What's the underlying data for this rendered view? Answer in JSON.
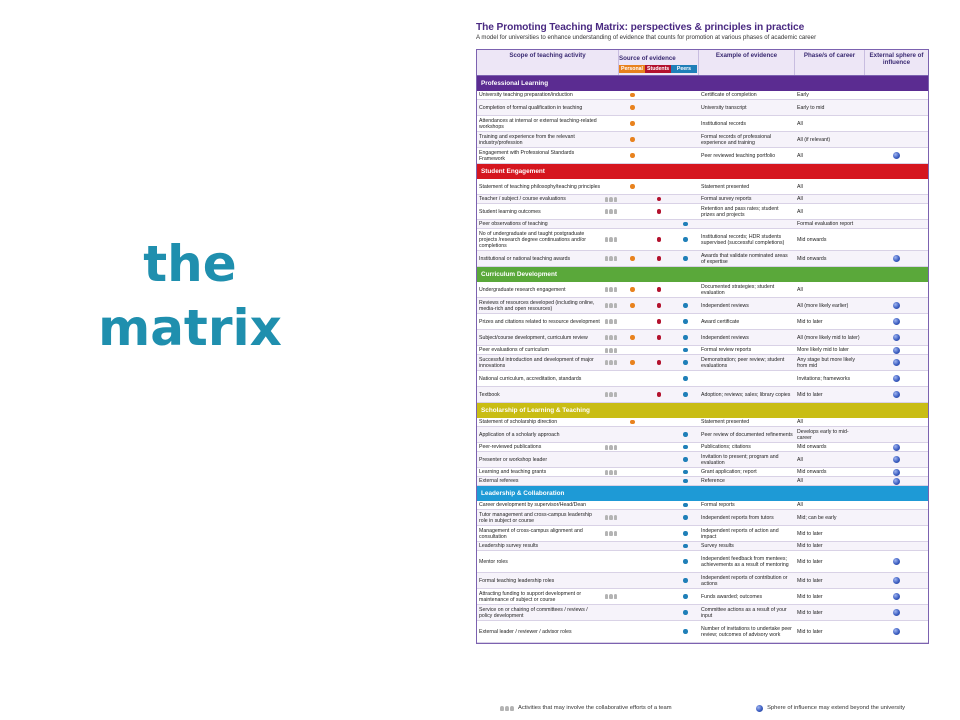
{
  "slide": {
    "title_line1": "the",
    "title_line2": "matrix"
  },
  "document": {
    "title": "The Promoting Teaching Matrix: perspectives & principles in practice",
    "subtitle": "A model for universities to enhance understanding of evidence that counts for promotion at various phases of academic career"
  },
  "colors": {
    "personal": "#e8821e",
    "students": "#b3122e",
    "peers": "#1f7fb8",
    "team_icon": "#b4b4b4"
  },
  "columns": {
    "scope": "Scope of teaching activity",
    "source": "Source of evidence",
    "source_keys": [
      "Personal",
      "Students",
      "Peers"
    ],
    "example": "Example of evidence",
    "phase": "Phase/s of career",
    "external": "External sphere of influence"
  },
  "sections": [
    {
      "name": "Professional Learning",
      "color": "#5b2c91",
      "rows": [
        {
          "scope": "University teaching preparation/induction",
          "team": false,
          "src": [
            "p"
          ],
          "example": "Certificate of completion",
          "phase": "Early",
          "ext": false
        },
        {
          "scope": "Completion of formal qualification in teaching",
          "team": false,
          "src": [
            "p"
          ],
          "example": "University transcript",
          "phase": "Early to mid",
          "ext": false
        },
        {
          "scope": "Attendances at internal or external teaching-related workshops",
          "team": false,
          "src": [
            "p"
          ],
          "example": "Institutional records",
          "phase": "All",
          "ext": false
        },
        {
          "scope": "Training and experience from the relevant industry/profession",
          "team": false,
          "src": [
            "p"
          ],
          "example": "Formal records of professional experience and training",
          "phase": "All (if relevant)",
          "ext": false
        },
        {
          "scope": "Engagement with Professional Standards Framework",
          "team": false,
          "src": [
            "p"
          ],
          "example": "Peer reviewed teaching portfolio",
          "phase": "All",
          "ext": true
        }
      ]
    },
    {
      "name": "Student Engagement",
      "color": "#d5161f",
      "rows": [
        {
          "scope": "Statement of teaching philosophy/teaching principles",
          "team": false,
          "src": [
            "p"
          ],
          "example": "Statement presented",
          "phase": "All",
          "ext": false
        },
        {
          "scope": "Teacher / subject / course evaluations",
          "team": true,
          "src": [
            "s"
          ],
          "example": "Formal survey reports",
          "phase": "All",
          "ext": false
        },
        {
          "scope": "Student learning outcomes",
          "team": true,
          "src": [
            "s"
          ],
          "example": "Retention and pass rates; student prizes and projects",
          "phase": "All",
          "ext": false
        },
        {
          "scope": "Peer observations of teaching",
          "team": false,
          "src": [
            "r"
          ],
          "example": "",
          "phase": "Formal evaluation report",
          "ext": false
        },
        {
          "scope": "No of undergraduate and taught postgraduate projects /research degree continuations and/or completions",
          "team": true,
          "src": [
            "s",
            "r"
          ],
          "example": "Institutional records; HDR students supervised (successful completions)",
          "phase": "Mid onwards",
          "ext": false
        },
        {
          "scope": "Institutional or national teaching awards",
          "team": true,
          "src": [
            "p",
            "s",
            "r"
          ],
          "example": "Awards that validate nominated areas of expertise",
          "phase": "Mid onwards",
          "ext": true
        }
      ]
    },
    {
      "name": "Curriculum Development",
      "color": "#5aa83a",
      "rows": [
        {
          "scope": "Undergraduate research engagement",
          "team": true,
          "src": [
            "p",
            "s"
          ],
          "example": "Documented strategies; student evaluation",
          "phase": "All",
          "ext": false
        },
        {
          "scope": "Reviews of resources developed (including online, media-rich and open resources)",
          "team": true,
          "src": [
            "p",
            "s",
            "r"
          ],
          "example": "Independent reviews",
          "phase": "All (more likely earlier)",
          "ext": true
        },
        {
          "scope": "Prizes and citations related to resource development",
          "team": true,
          "src": [
            "s",
            "r"
          ],
          "example": "Award certificate",
          "phase": "Mid to later",
          "ext": true
        },
        {
          "scope": "Subject/course development, curriculum review",
          "team": true,
          "src": [
            "p",
            "s",
            "r"
          ],
          "example": "Independent reviews",
          "phase": "All (more likely mid to later)",
          "ext": true
        },
        {
          "scope": "Peer evaluations of curriculum",
          "team": true,
          "src": [
            "r"
          ],
          "example": "Formal review reports",
          "phase": "More likely mid to later",
          "ext": true
        },
        {
          "scope": "Successful introduction and development of major innovations",
          "team": true,
          "src": [
            "p",
            "s",
            "r"
          ],
          "example": "Demonstration; peer review; student evaluations",
          "phase": "Any stage but more likely from mid",
          "ext": true
        },
        {
          "scope": "National curriculum, accreditation, standards",
          "team": false,
          "src": [
            "r"
          ],
          "example": "",
          "phase": "Invitations; frameworks",
          "ext": true
        },
        {
          "scope": "Textbook",
          "team": true,
          "src": [
            "s",
            "r"
          ],
          "example": "Adoption; reviews; sales; library copies",
          "phase": "Mid to later",
          "ext": true
        }
      ]
    },
    {
      "name": "Scholarship of Learning & Teaching",
      "color": "#c9bd14",
      "rows": [
        {
          "scope": "Statement of scholarship direction",
          "team": false,
          "src": [
            "p"
          ],
          "example": "Statement presented",
          "phase": "All",
          "ext": false
        },
        {
          "scope": "Application of a scholarly approach",
          "team": false,
          "src": [
            "r"
          ],
          "example": "Peer review of documented refinements",
          "phase": "Develops early to mid-career",
          "ext": false
        },
        {
          "scope": "Peer-reviewed publications",
          "team": true,
          "src": [
            "r"
          ],
          "example": "Publications; citations",
          "phase": "Mid onwards",
          "ext": true
        },
        {
          "scope": "Presenter or workshop leader",
          "team": false,
          "src": [
            "r"
          ],
          "example": "Invitation to present; program and evaluation",
          "phase": "All",
          "ext": true
        },
        {
          "scope": "Learning and teaching grants",
          "team": true,
          "src": [
            "r"
          ],
          "example": "Grant application; report",
          "phase": "Mid onwards",
          "ext": true
        },
        {
          "scope": "External referees",
          "team": false,
          "src": [
            "r"
          ],
          "example": "Reference",
          "phase": "All",
          "ext": true
        }
      ]
    },
    {
      "name": "Leadership & Collaboration",
      "color": "#1e9ad6",
      "rows": [
        {
          "scope": "Career development by supervisor/Head/Dean",
          "team": false,
          "src": [
            "r"
          ],
          "example": "Formal reports",
          "phase": "All",
          "ext": false
        },
        {
          "scope": "Tutor management and cross-campus leadership role in subject or course",
          "team": true,
          "src": [
            "r"
          ],
          "example": "Independent reports from tutors",
          "phase": "Mid; can be early",
          "ext": false
        },
        {
          "scope": "Management of cross-campus alignment and consultation",
          "team": true,
          "src": [
            "r"
          ],
          "example": "Independent reports of action and impact",
          "phase": "Mid to later",
          "ext": false
        },
        {
          "scope": "Leadership survey results",
          "team": false,
          "src": [
            "r"
          ],
          "example": "Survey results",
          "phase": "Mid to later",
          "ext": false
        },
        {
          "scope": "Mentor roles",
          "team": false,
          "src": [
            "r"
          ],
          "example": "Independent feedback from mentees; achievements as a result of mentoring",
          "phase": "Mid to later",
          "ext": true
        },
        {
          "scope": "Formal teaching leadership roles",
          "team": false,
          "src": [
            "r"
          ],
          "example": "Independent reports of contribution or actions",
          "phase": "Mid to later",
          "ext": true
        },
        {
          "scope": "Attracting funding to support development or maintenance of subject or course",
          "team": true,
          "src": [
            "r"
          ],
          "example": "Funds awarded; outcomes",
          "phase": "Mid to later",
          "ext": true
        },
        {
          "scope": "Service on or chairing of committees / reviews / policy development",
          "team": false,
          "src": [
            "r"
          ],
          "example": "Committee actions as a result of your input",
          "phase": "Mid to later",
          "ext": true
        },
        {
          "scope": "External leader / reviewer / advisor roles",
          "team": false,
          "src": [
            "r"
          ],
          "example": "Number of invitations to undertake peer review; outcomes of advisory work",
          "phase": "Mid to later",
          "ext": true
        }
      ]
    }
  ],
  "legend": {
    "team": "Activities that may involve the collaborative efforts of a team",
    "sphere": "Sphere of influence may extend beyond the university"
  }
}
